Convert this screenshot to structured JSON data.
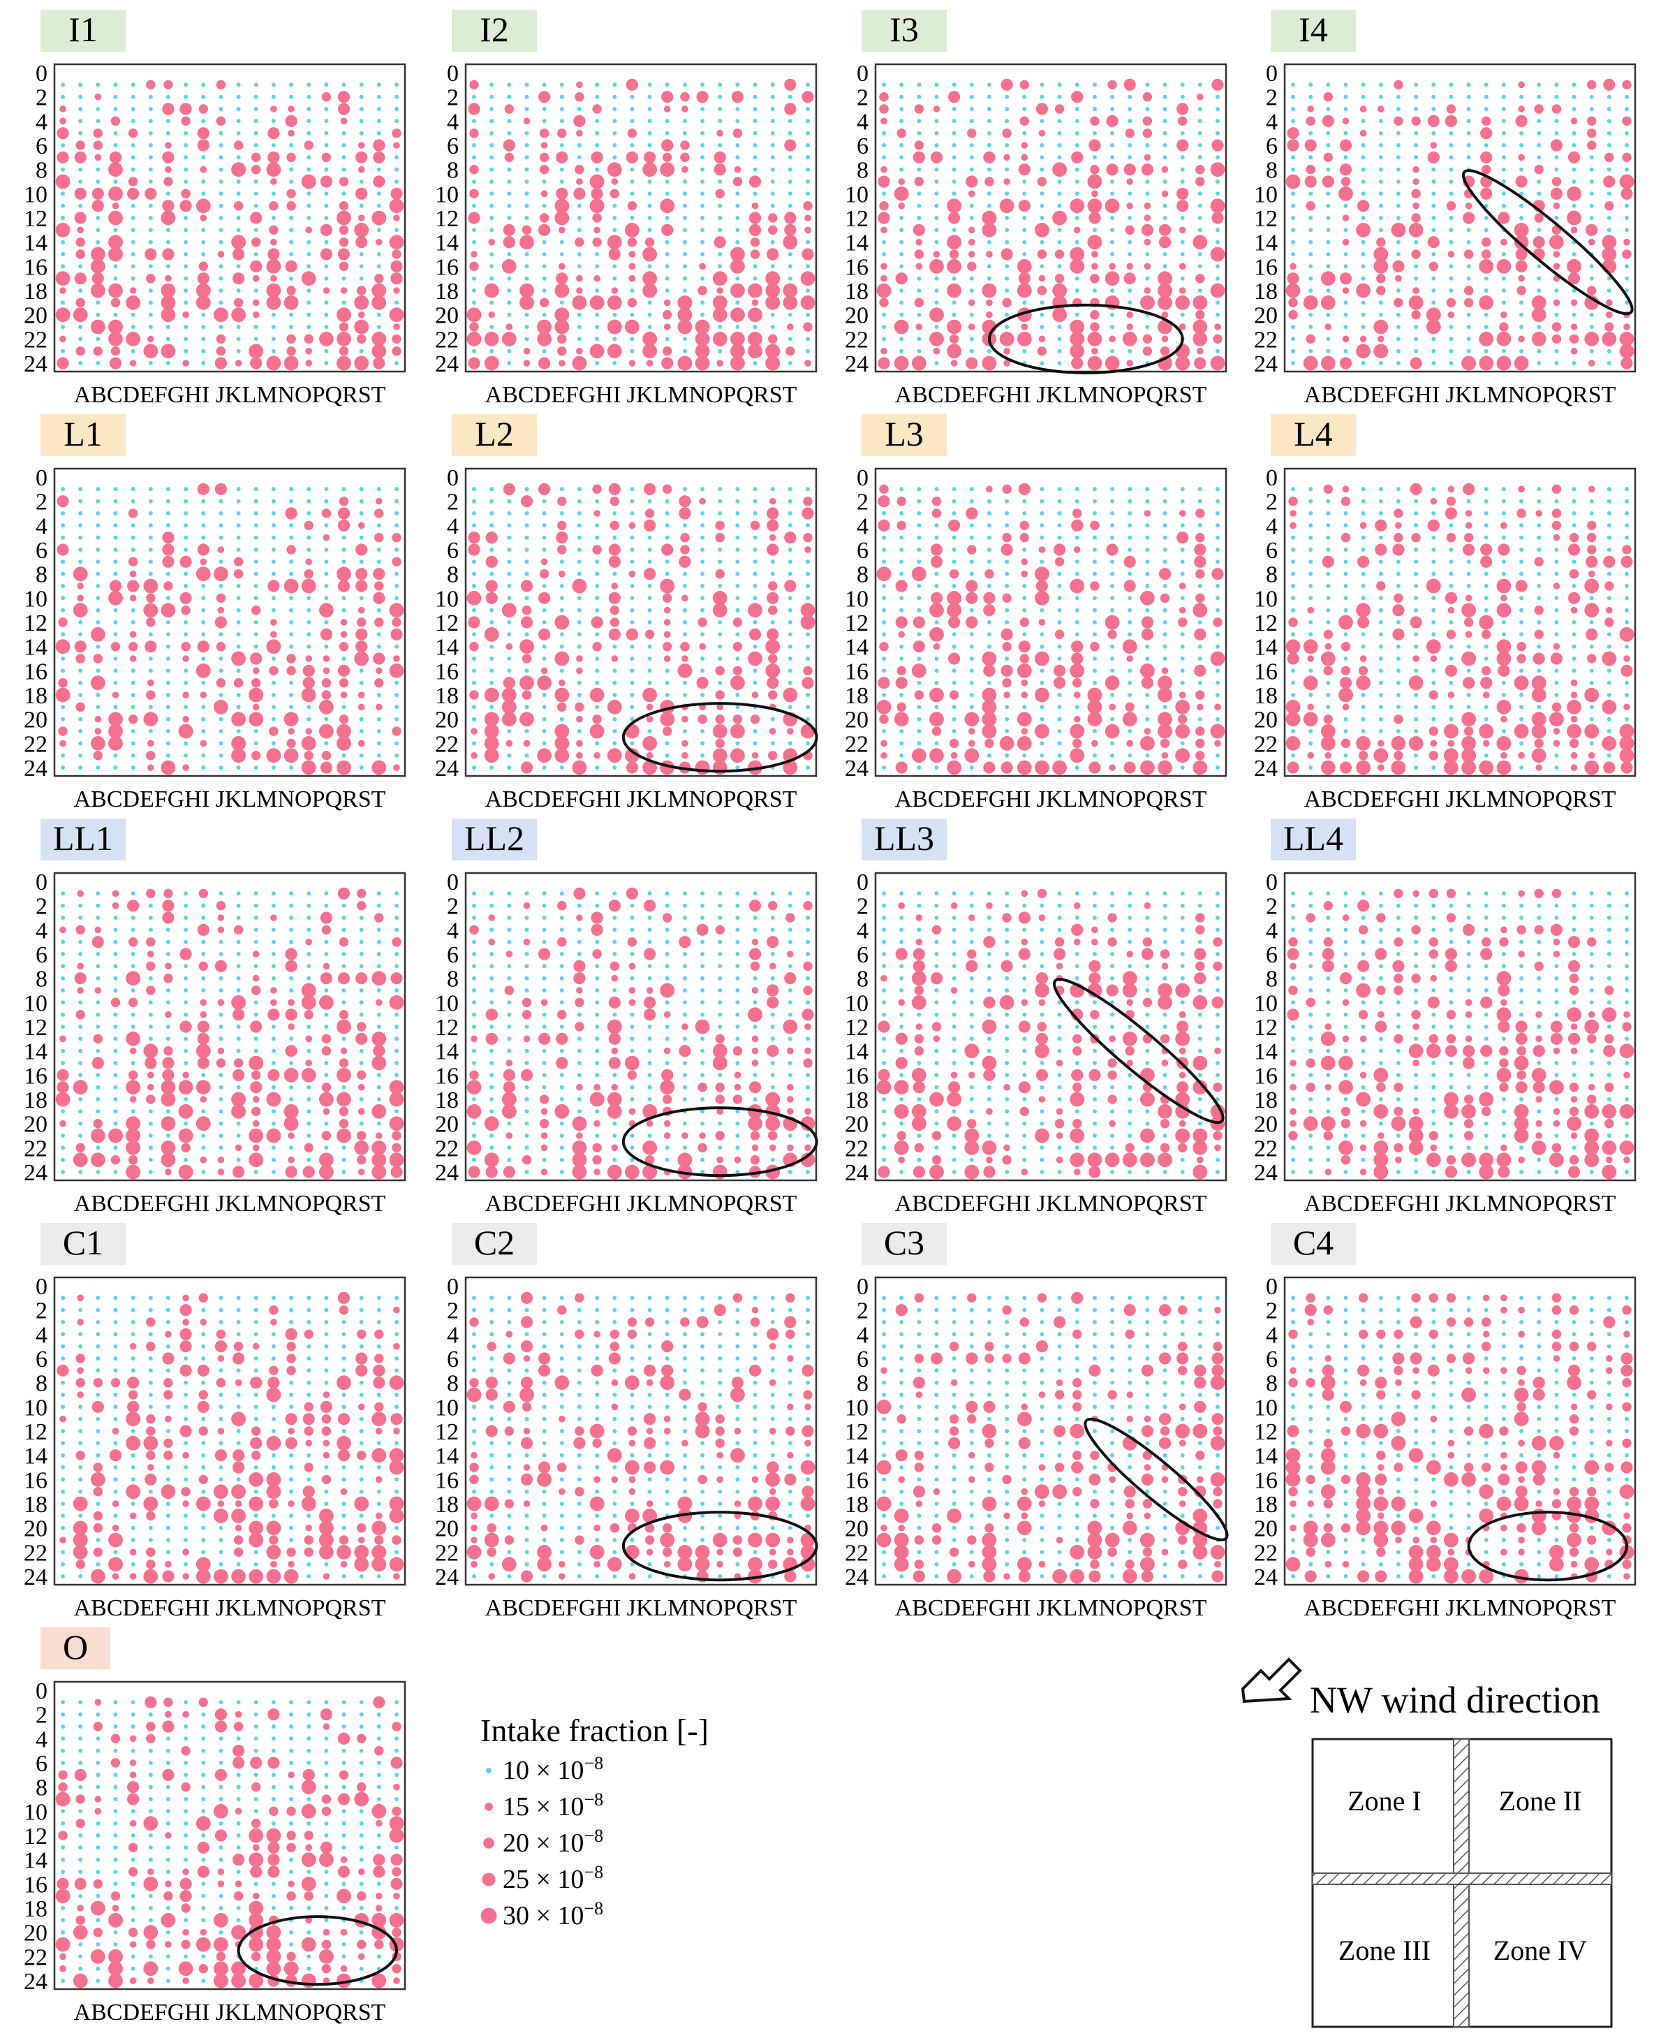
{
  "panels": [
    {
      "id": "I1",
      "label": "I1",
      "group": "I"
    },
    {
      "id": "I2",
      "label": "I2",
      "group": "I"
    },
    {
      "id": "I3",
      "label": "I3",
      "group": "I"
    },
    {
      "id": "I4",
      "label": "I4",
      "group": "I"
    },
    {
      "id": "L1",
      "label": "L1",
      "group": "L"
    },
    {
      "id": "L2",
      "label": "L2",
      "group": "L"
    },
    {
      "id": "L3",
      "label": "L3",
      "group": "L"
    },
    {
      "id": "L4",
      "label": "L4",
      "group": "L"
    },
    {
      "id": "LL1",
      "label": "LL1",
      "group": "LL"
    },
    {
      "id": "LL2",
      "label": "LL2",
      "group": "LL"
    },
    {
      "id": "LL3",
      "label": "LL3",
      "group": "LL"
    },
    {
      "id": "LL4",
      "label": "LL4",
      "group": "LL"
    },
    {
      "id": "C1",
      "label": "C1",
      "group": "C"
    },
    {
      "id": "C2",
      "label": "C2",
      "group": "C"
    },
    {
      "id": "C3",
      "label": "C3",
      "group": "C"
    },
    {
      "id": "C4",
      "label": "C4",
      "group": "C"
    },
    {
      "id": "O",
      "label": "O",
      "group": "O"
    }
  ],
  "group_colors": {
    "I": "#dcecd6",
    "L": "#fbe7c3",
    "LL": "#d6e2f3",
    "C": "#ececec",
    "O": "#fbdcd0"
  },
  "colors": {
    "low": "#5fd3e2",
    "high": "#f56f90",
    "frame": "#333333",
    "ellipse": "#111111"
  },
  "chart_data": {
    "type": "scatter",
    "description_free": true,
    "x_categories": [
      "A",
      "B",
      "C",
      "D",
      "E",
      "F",
      "G",
      "H",
      "I",
      "J",
      "K",
      "L",
      "M",
      "N",
      "O",
      "P",
      "Q",
      "R",
      "S",
      "T"
    ],
    "x_tick_text": "ABCDEFGHI JKLMNOPQRST",
    "y_ticks": [
      "0",
      "2",
      "4",
      "6",
      "8",
      "10",
      "12",
      "14",
      "16",
      "18",
      "20",
      "22",
      "24"
    ],
    "y_range": [
      0,
      24
    ],
    "value_threshold_pink": 15,
    "legend": {
      "title": "Intake fraction [-]",
      "unit_suffix": "× 10",
      "exponent": "−8",
      "entries": [
        {
          "value": 10,
          "mantissa": "10",
          "color": "low"
        },
        {
          "value": 15,
          "mantissa": "15",
          "color": "high"
        },
        {
          "value": 20,
          "mantissa": "20",
          "color": "high"
        },
        {
          "value": 25,
          "mantissa": "25",
          "color": "high"
        },
        {
          "value": 30,
          "mantissa": "30",
          "color": "high"
        }
      ]
    },
    "highlight_ellipses": [
      {
        "panel": "I3",
        "x_center": 11.5,
        "y_center": 22.0,
        "x_radius": 5.5,
        "y_radius": 2.8,
        "angle": 0
      },
      {
        "panel": "I4",
        "x_center": 14.5,
        "y_center": 14.0,
        "x_radius": 6.2,
        "y_radius": 1.6,
        "angle": 40
      },
      {
        "panel": "L2",
        "x_center": 14.0,
        "y_center": 21.5,
        "x_radius": 5.5,
        "y_radius": 2.8,
        "angle": 0
      },
      {
        "panel": "LL2",
        "x_center": 14.0,
        "y_center": 21.5,
        "x_radius": 5.5,
        "y_radius": 2.8,
        "angle": 0
      },
      {
        "panel": "LL3",
        "x_center": 14.5,
        "y_center": 14.0,
        "x_radius": 6.2,
        "y_radius": 1.6,
        "angle": 40
      },
      {
        "panel": "C2",
        "x_center": 14.0,
        "y_center": 21.5,
        "x_radius": 5.5,
        "y_radius": 2.8,
        "angle": 0
      },
      {
        "panel": "C3",
        "x_center": 15.5,
        "y_center": 16.0,
        "x_radius": 5.2,
        "y_radius": 1.5,
        "angle": 40
      },
      {
        "panel": "C4",
        "x_center": 14.5,
        "y_center": 21.5,
        "x_radius": 4.5,
        "y_radius": 2.8,
        "angle": 0
      },
      {
        "panel": "O",
        "x_center": 14.5,
        "y_center": 21.5,
        "x_radius": 4.5,
        "y_radius": 2.8,
        "angle": 0
      }
    ]
  },
  "wind": {
    "label": "NW wind direction"
  },
  "zones": [
    "Zone I",
    "Zone II",
    "Zone III",
    "Zone IV"
  ]
}
